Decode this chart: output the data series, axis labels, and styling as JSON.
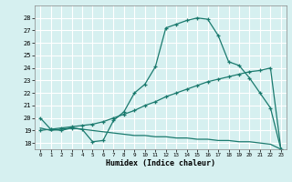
{
  "xlabel": "Humidex (Indice chaleur)",
  "bg_color": "#d6f0f0",
  "line_color": "#1a7a6e",
  "grid_color": "#ffffff",
  "series1_x": [
    0,
    1,
    2,
    3,
    4,
    5,
    6,
    7,
    8,
    9,
    10,
    11,
    12,
    13,
    14,
    15,
    16,
    17,
    18,
    19,
    20,
    21,
    22,
    23
  ],
  "series1_y": [
    20.0,
    19.1,
    19.0,
    19.2,
    19.1,
    18.1,
    18.2,
    19.8,
    20.5,
    22.0,
    22.7,
    24.1,
    27.2,
    27.5,
    27.8,
    28.0,
    27.9,
    26.6,
    24.5,
    24.2,
    23.2,
    22.0,
    20.8,
    17.5
  ],
  "series2_x": [
    0,
    1,
    2,
    3,
    4,
    5,
    6,
    7,
    8,
    9,
    10,
    11,
    12,
    13,
    14,
    15,
    16,
    17,
    18,
    19,
    20,
    21,
    22,
    23
  ],
  "series2_y": [
    19.0,
    19.1,
    19.2,
    19.3,
    19.4,
    19.5,
    19.7,
    20.0,
    20.3,
    20.6,
    21.0,
    21.3,
    21.7,
    22.0,
    22.3,
    22.6,
    22.9,
    23.1,
    23.3,
    23.5,
    23.7,
    23.8,
    24.0,
    17.5
  ],
  "series3_x": [
    0,
    1,
    2,
    3,
    4,
    5,
    6,
    7,
    8,
    9,
    10,
    11,
    12,
    13,
    14,
    15,
    16,
    17,
    18,
    19,
    20,
    21,
    22,
    23
  ],
  "series3_y": [
    19.2,
    19.0,
    19.1,
    19.2,
    19.1,
    19.0,
    18.9,
    18.8,
    18.7,
    18.6,
    18.6,
    18.5,
    18.5,
    18.4,
    18.4,
    18.3,
    18.3,
    18.2,
    18.2,
    18.1,
    18.1,
    18.0,
    17.9,
    17.5
  ],
  "ylim": [
    17.5,
    29.0
  ],
  "xlim": [
    -0.5,
    23.5
  ],
  "yticks": [
    18,
    19,
    20,
    21,
    22,
    23,
    24,
    25,
    26,
    27,
    28
  ],
  "xticks": [
    0,
    1,
    2,
    3,
    4,
    5,
    6,
    7,
    8,
    9,
    10,
    11,
    12,
    13,
    14,
    15,
    16,
    17,
    18,
    19,
    20,
    21,
    22,
    23
  ]
}
